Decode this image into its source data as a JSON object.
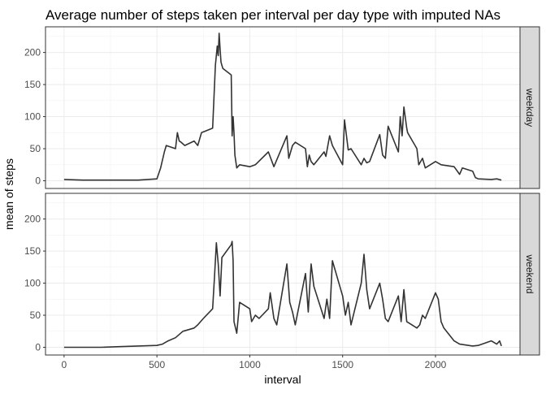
{
  "chart_data": {
    "type": "line",
    "title": "Average number of steps taken per interval per day type with imputed NAs",
    "xlabel": "interval",
    "ylabel": "mean of steps",
    "xlim": [
      -100,
      2455
    ],
    "ylim": [
      -12,
      240
    ],
    "x_ticks": [
      0,
      500,
      1000,
      1500,
      2000
    ],
    "x_tick_labels": [
      "0",
      "500",
      "1000",
      "1500",
      "2000"
    ],
    "y_ticks": [
      0,
      50,
      100,
      150,
      200
    ],
    "y_tick_labels": [
      "0",
      "50",
      "100",
      "150",
      "200"
    ],
    "grid": true,
    "line_color": "#333333",
    "facet_label_position": "right",
    "panels": [
      {
        "facet": "weekday",
        "x": [
          0,
          100,
          200,
          300,
          400,
          500,
          520,
          540,
          550,
          600,
          610,
          620,
          630,
          650,
          700,
          720,
          740,
          800,
          815,
          825,
          830,
          835,
          840,
          845,
          850,
          855,
          900,
          905,
          910,
          915,
          920,
          930,
          945,
          1000,
          1030,
          1100,
          1130,
          1200,
          1210,
          1220,
          1230,
          1245,
          1300,
          1310,
          1320,
          1330,
          1345,
          1400,
          1410,
          1430,
          1445,
          1500,
          1510,
          1530,
          1545,
          1600,
          1615,
          1630,
          1645,
          1700,
          1715,
          1730,
          1745,
          1800,
          1810,
          1820,
          1830,
          1845,
          1850,
          1900,
          1910,
          1930,
          1945,
          2000,
          2030,
          2100,
          2130,
          2145,
          2200,
          2215,
          2230,
          2300,
          2330,
          2355
        ],
        "y": [
          2,
          1,
          1,
          1,
          1,
          3,
          20,
          45,
          55,
          50,
          75,
          62,
          60,
          55,
          62,
          55,
          75,
          82,
          180,
          210,
          195,
          230,
          205,
          185,
          180,
          175,
          165,
          70,
          100,
          75,
          40,
          20,
          25,
          22,
          25,
          45,
          22,
          70,
          35,
          45,
          55,
          60,
          50,
          22,
          40,
          30,
          25,
          45,
          38,
          70,
          55,
          25,
          95,
          48,
          50,
          25,
          35,
          28,
          30,
          72,
          40,
          35,
          85,
          45,
          100,
          70,
          115,
          82,
          75,
          50,
          25,
          35,
          20,
          30,
          25,
          22,
          10,
          20,
          15,
          5,
          3,
          2,
          3,
          1
        ]
      },
      {
        "facet": "weekend",
        "x": [
          0,
          100,
          200,
          300,
          400,
          500,
          530,
          560,
          600,
          640,
          700,
          720,
          750,
          800,
          810,
          820,
          830,
          840,
          850,
          900,
          905,
          910,
          915,
          930,
          945,
          1000,
          1010,
          1030,
          1050,
          1100,
          1110,
          1130,
          1145,
          1200,
          1215,
          1230,
          1245,
          1300,
          1315,
          1330,
          1345,
          1400,
          1415,
          1430,
          1445,
          1500,
          1515,
          1530,
          1545,
          1600,
          1615,
          1630,
          1645,
          1700,
          1715,
          1730,
          1745,
          1800,
          1815,
          1830,
          1845,
          1900,
          1915,
          1930,
          1945,
          2000,
          2015,
          2030,
          2045,
          2100,
          2130,
          2200,
          2230,
          2300,
          2330,
          2345,
          2355
        ],
        "y": [
          0,
          0,
          0,
          1,
          2,
          3,
          5,
          10,
          15,
          25,
          30,
          35,
          45,
          60,
          110,
          163,
          130,
          80,
          140,
          160,
          165,
          135,
          40,
          22,
          70,
          60,
          40,
          50,
          45,
          60,
          85,
          45,
          35,
          130,
          70,
          55,
          35,
          115,
          55,
          130,
          95,
          45,
          75,
          45,
          135,
          80,
          50,
          70,
          35,
          100,
          145,
          90,
          60,
          100,
          75,
          45,
          40,
          80,
          40,
          90,
          40,
          30,
          35,
          50,
          45,
          85,
          75,
          40,
          30,
          10,
          5,
          2,
          3,
          10,
          5,
          10,
          2
        ]
      }
    ]
  }
}
